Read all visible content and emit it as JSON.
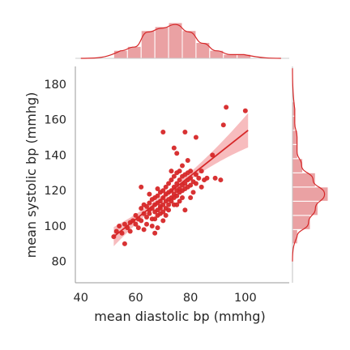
{
  "chart_data": {
    "type": "scatter",
    "title": "",
    "xlabel": "mean diastolic bp (mmhg)",
    "ylabel": "mean systolic bp (mmhg)",
    "xlim": [
      38,
      116
    ],
    "ylim": [
      68,
      190
    ],
    "xticks": [
      "40",
      "60",
      "80",
      "100"
    ],
    "yticks": [
      "80",
      "100",
      "120",
      "140",
      "160",
      "180"
    ],
    "grid": false,
    "marginal_plots": "histogram with kde on top (x) and right (y)",
    "colors": {
      "points": "#d62728",
      "regression_line": "#d62728",
      "confidence_band": "#f4a6a8",
      "histogram_bars": "#eaa1a3",
      "kde_line": "#d62728",
      "axes": "#9a9a9a"
    },
    "regression": {
      "x0": 52,
      "y0": 94,
      "x1": 101,
      "y1": 154
    },
    "points": [
      [
        52,
        94
      ],
      [
        53,
        97
      ],
      [
        54,
        100
      ],
      [
        55,
        96
      ],
      [
        56,
        90
      ],
      [
        56,
        101
      ],
      [
        57,
        99
      ],
      [
        58,
        102
      ],
      [
        58,
        97
      ],
      [
        59,
        103
      ],
      [
        60,
        101
      ],
      [
        60,
        106
      ],
      [
        61,
        104
      ],
      [
        61,
        99
      ],
      [
        62,
        103
      ],
      [
        62,
        110
      ],
      [
        62,
        122
      ],
      [
        63,
        107
      ],
      [
        63,
        112
      ],
      [
        63,
        98
      ],
      [
        64,
        105
      ],
      [
        64,
        111
      ],
      [
        64,
        101
      ],
      [
        65,
        107
      ],
      [
        65,
        113
      ],
      [
        65,
        118
      ],
      [
        65,
        109
      ],
      [
        66,
        104
      ],
      [
        66,
        110
      ],
      [
        66,
        115
      ],
      [
        66,
        100
      ],
      [
        67,
        108
      ],
      [
        67,
        112
      ],
      [
        67,
        116
      ],
      [
        67,
        104
      ],
      [
        67,
        96
      ],
      [
        68,
        109
      ],
      [
        68,
        113
      ],
      [
        68,
        117
      ],
      [
        68,
        106
      ],
      [
        68,
        121
      ],
      [
        68,
        99
      ],
      [
        69,
        110
      ],
      [
        69,
        114
      ],
      [
        69,
        119
      ],
      [
        69,
        107
      ],
      [
        69,
        111
      ],
      [
        70,
        112
      ],
      [
        70,
        116
      ],
      [
        70,
        120
      ],
      [
        70,
        108
      ],
      [
        70,
        153
      ],
      [
        70,
        103
      ],
      [
        71,
        114
      ],
      [
        71,
        118
      ],
      [
        71,
        122
      ],
      [
        71,
        110
      ],
      [
        71,
        106
      ],
      [
        72,
        115
      ],
      [
        72,
        119
      ],
      [
        72,
        112
      ],
      [
        72,
        124
      ],
      [
        72,
        109
      ],
      [
        73,
        116
      ],
      [
        73,
        120
      ],
      [
        73,
        114
      ],
      [
        73,
        126
      ],
      [
        73,
        131
      ],
      [
        74,
        118
      ],
      [
        74,
        122
      ],
      [
        74,
        116
      ],
      [
        74,
        128
      ],
      [
        74,
        112
      ],
      [
        74,
        144
      ],
      [
        75,
        120
      ],
      [
        75,
        124
      ],
      [
        75,
        117
      ],
      [
        75,
        130
      ],
      [
        75,
        141
      ],
      [
        75,
        112
      ],
      [
        76,
        121
      ],
      [
        76,
        126
      ],
      [
        76,
        119
      ],
      [
        76,
        131
      ],
      [
        76,
        114
      ],
      [
        77,
        123
      ],
      [
        77,
        128
      ],
      [
        77,
        120
      ],
      [
        77,
        134
      ],
      [
        77,
        116
      ],
      [
        78,
        124
      ],
      [
        78,
        129
      ],
      [
        78,
        121
      ],
      [
        78,
        153
      ],
      [
        78,
        109
      ],
      [
        79,
        126
      ],
      [
        79,
        130
      ],
      [
        79,
        122
      ],
      [
        79,
        137
      ],
      [
        80,
        127
      ],
      [
        80,
        131
      ],
      [
        80,
        123
      ],
      [
        80,
        116
      ],
      [
        81,
        125
      ],
      [
        81,
        119
      ],
      [
        82,
        129
      ],
      [
        82,
        124
      ],
      [
        82,
        150
      ],
      [
        83,
        127
      ],
      [
        84,
        122
      ],
      [
        84,
        131
      ],
      [
        85,
        126
      ],
      [
        86,
        127
      ],
      [
        88,
        140
      ],
      [
        89,
        127
      ],
      [
        91,
        126
      ],
      [
        92,
        157
      ],
      [
        93,
        167
      ],
      [
        100,
        165
      ]
    ],
    "x_hist": [
      {
        "range": [
          52,
          57
        ],
        "count": 2
      },
      {
        "range": [
          57,
          62
        ],
        "count": 3
      },
      {
        "range": [
          62,
          67
        ],
        "count": 7
      },
      {
        "range": [
          67,
          72
        ],
        "count": 8
      },
      {
        "range": [
          72,
          77
        ],
        "count": 9
      },
      {
        "range": [
          77,
          82
        ],
        "count": 7
      },
      {
        "range": [
          82,
          87
        ],
        "count": 4
      },
      {
        "range": [
          87,
          92
        ],
        "count": 2
      },
      {
        "range": [
          92,
          97
        ],
        "count": 1
      },
      {
        "range": [
          97,
          102
        ],
        "count": 1
      }
    ],
    "y_hist": [
      {
        "range": [
          90,
          98
        ],
        "count": 2
      },
      {
        "range": [
          98,
          106
        ],
        "count": 7
      },
      {
        "range": [
          106,
          114
        ],
        "count": 10
      },
      {
        "range": [
          114,
          122
        ],
        "count": 14
      },
      {
        "range": [
          122,
          130
        ],
        "count": 9
      },
      {
        "range": [
          130,
          138
        ],
        "count": 4
      },
      {
        "range": [
          138,
          146
        ],
        "count": 2
      },
      {
        "range": [
          146,
          154
        ],
        "count": 2
      },
      {
        "range": [
          154,
          162
        ],
        "count": 1
      },
      {
        "range": [
          162,
          170
        ],
        "count": 1
      }
    ]
  }
}
